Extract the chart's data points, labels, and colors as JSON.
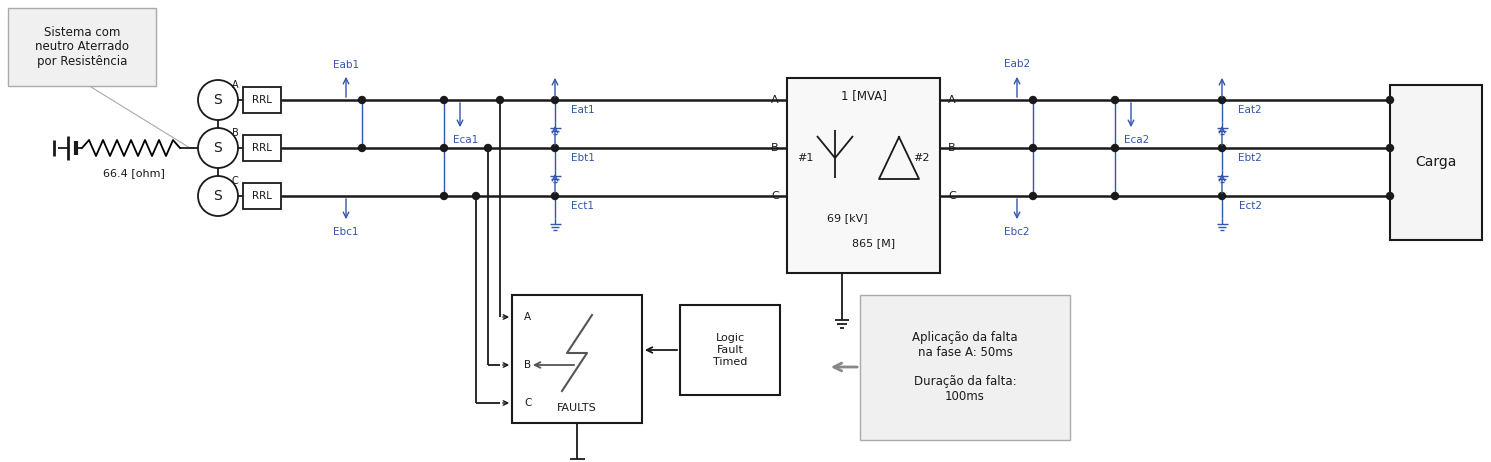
{
  "bg_color": "#ffffff",
  "line_color": "#1a1a1a",
  "blue_color": "#3355aa",
  "fig_width": 14.91,
  "fig_height": 4.62,
  "dpi": 100,
  "callout_text": "Sistema com\nneutro Aterrado\npor Resistência",
  "resistance_label": "66.4 [ohm]",
  "transformer_label1": "1 [MVA]",
  "transformer_label2": "#1",
  "transformer_label3": "#2",
  "transformer_label4": "69 [kV]",
  "transformer_label5": "865 [M]",
  "carga_label": "Carga",
  "faults_label": "FAULTS",
  "logic_label": "Logic\nFault\nTimed",
  "annotation_text": "Aplicação da falta\nna fase A: 50ms\n\nDuração da falta:\n100ms"
}
